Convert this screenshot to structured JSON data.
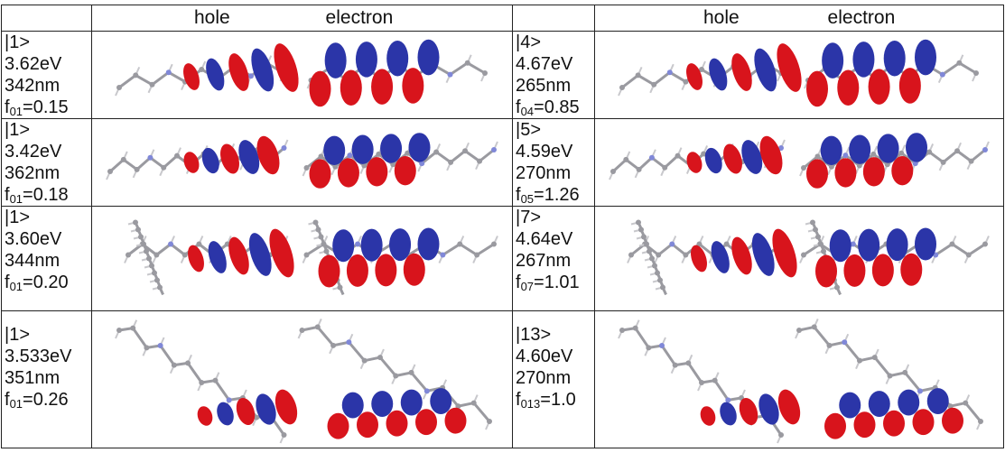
{
  "header": {
    "hole": "hole",
    "electron": "electron"
  },
  "colors": {
    "positive_lobe": "#d8141c",
    "negative_lobe": "#2b35a8",
    "carbon": "#9a9aa0",
    "nitrogen": "#8088d8",
    "oxygen": "#d03030",
    "hydrogen": "#e8e8ec"
  },
  "rows": [
    {
      "left": {
        "state": "|1>",
        "energy": "3.62eV",
        "wavelength": "342nm",
        "f_prefix": "f",
        "f_sub": "01",
        "f_value": "=0.15"
      },
      "right": {
        "state": "|4>",
        "energy": "4.67eV",
        "wavelength": "265nm",
        "f_prefix": "f",
        "f_sub": "04",
        "f_value": "=0.85"
      }
    },
    {
      "left": {
        "state": "|1>",
        "energy": "3.42eV",
        "wavelength": "362nm",
        "f_prefix": "f",
        "f_sub": "01",
        "f_value": "=0.18"
      },
      "right": {
        "state": "|5>",
        "energy": "4.59eV",
        "wavelength": "270nm",
        "f_prefix": "f",
        "f_sub": "05",
        "f_value": "=1.26"
      }
    },
    {
      "left": {
        "state": "|1>",
        "energy": "3.60eV",
        "wavelength": "344nm",
        "f_prefix": "f",
        "f_sub": "01",
        "f_value": "=0.20"
      },
      "right": {
        "state": "|7>",
        "energy": "4.64eV",
        "wavelength": "267nm",
        "f_prefix": "f",
        "f_sub": "07",
        "f_value": "=1.01"
      }
    },
    {
      "left": {
        "state": "|1>",
        "energy": "3.533eV",
        "wavelength": "351nm",
        "f_prefix": "f",
        "f_sub": "01",
        "f_value": "=0.26"
      },
      "right": {
        "state": "|13>",
        "energy": "4.60eV",
        "wavelength": "270nm",
        "f_prefix": "f",
        "f_sub": "013",
        "f_value": "=1.0"
      }
    }
  ]
}
